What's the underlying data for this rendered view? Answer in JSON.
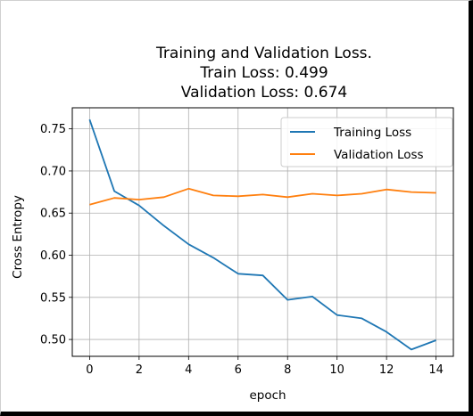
{
  "chart_data": {
    "type": "line",
    "title_lines": [
      "Training and Validation Loss.",
      "Train Loss: 0.499",
      "Validation Loss: 0.674"
    ],
    "xlabel": "epoch",
    "ylabel": "Cross Entropy",
    "x": [
      0,
      1,
      2,
      3,
      4,
      5,
      6,
      7,
      8,
      9,
      10,
      11,
      12,
      13,
      14
    ],
    "xlim": [
      -0.7,
      14.7
    ],
    "ylim": [
      0.48,
      0.775
    ],
    "xticks": [
      0,
      2,
      4,
      6,
      8,
      10,
      12,
      14
    ],
    "yticks": [
      0.5,
      0.55,
      0.6,
      0.65,
      0.7,
      0.75
    ],
    "ytick_labels": [
      "0.50",
      "0.55",
      "0.60",
      "0.65",
      "0.70",
      "0.75"
    ],
    "grid": true,
    "legend_position": "top-right",
    "series": [
      {
        "name": "Training Loss",
        "color": "#1f77b4",
        "values": [
          0.761,
          0.676,
          0.659,
          0.635,
          0.613,
          0.597,
          0.578,
          0.576,
          0.547,
          0.551,
          0.529,
          0.525,
          0.509,
          0.488,
          0.499
        ]
      },
      {
        "name": "Validation Loss",
        "color": "#ff7f0e",
        "values": [
          0.66,
          0.668,
          0.666,
          0.669,
          0.679,
          0.671,
          0.67,
          0.672,
          0.669,
          0.673,
          0.671,
          0.673,
          0.678,
          0.675,
          0.674
        ]
      }
    ]
  }
}
